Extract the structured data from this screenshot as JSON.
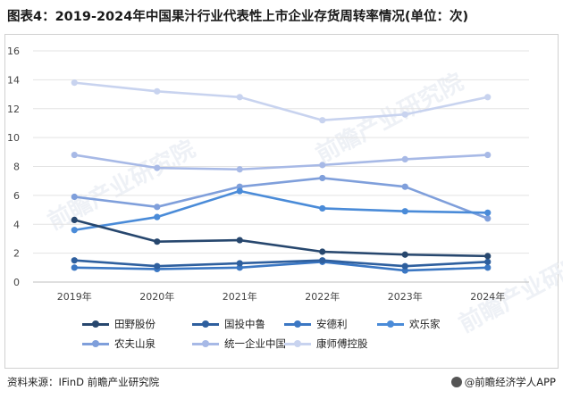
{
  "title": "图表4：2019-2024年中国果汁行业代表性上市企业存货周转率情况(单位：次)",
  "source": "资料来源：IFinD 前瞻产业研究院",
  "brand": "@前瞻经济学人APP",
  "watermark": "前瞻产业研究院",
  "chart_data": {
    "type": "line",
    "title": "2019-2024年中国果汁行业代表性上市企业存货周转率情况(单位：次)",
    "xlabel": "",
    "ylabel": "",
    "categories": [
      "2019年",
      "2020年",
      "2021年",
      "2022年",
      "2023年",
      "2024年"
    ],
    "ylim": [
      0,
      16
    ],
    "yticks": [
      0,
      2,
      4,
      6,
      8,
      10,
      12,
      14,
      16
    ],
    "grid": true,
    "legend_position": "bottom",
    "series": [
      {
        "name": "田野股份",
        "color": "#27476e",
        "values": [
          4.3,
          2.8,
          2.9,
          2.1,
          1.9,
          1.8
        ]
      },
      {
        "name": "国投中鲁",
        "color": "#2e5f9e",
        "values": [
          1.5,
          1.1,
          1.3,
          1.5,
          1.1,
          1.4
        ]
      },
      {
        "name": "安德利",
        "color": "#3b77c3",
        "values": [
          1.0,
          0.9,
          1.0,
          1.4,
          0.8,
          1.0
        ]
      },
      {
        "name": "欢乐家",
        "color": "#4a8bd8",
        "values": [
          3.6,
          4.5,
          6.3,
          5.1,
          4.9,
          4.8
        ]
      },
      {
        "name": "农夫山泉",
        "color": "#7f9fdb",
        "values": [
          5.9,
          5.2,
          6.6,
          7.2,
          6.6,
          4.4
        ]
      },
      {
        "name": "统一企业中国",
        "color": "#a7b9e6",
        "values": [
          8.8,
          7.9,
          7.8,
          8.1,
          8.5,
          8.8
        ]
      },
      {
        "name": "康师傅控股",
        "color": "#c8d3ef",
        "values": [
          13.8,
          13.2,
          12.8,
          11.2,
          11.6,
          12.8
        ]
      }
    ]
  }
}
